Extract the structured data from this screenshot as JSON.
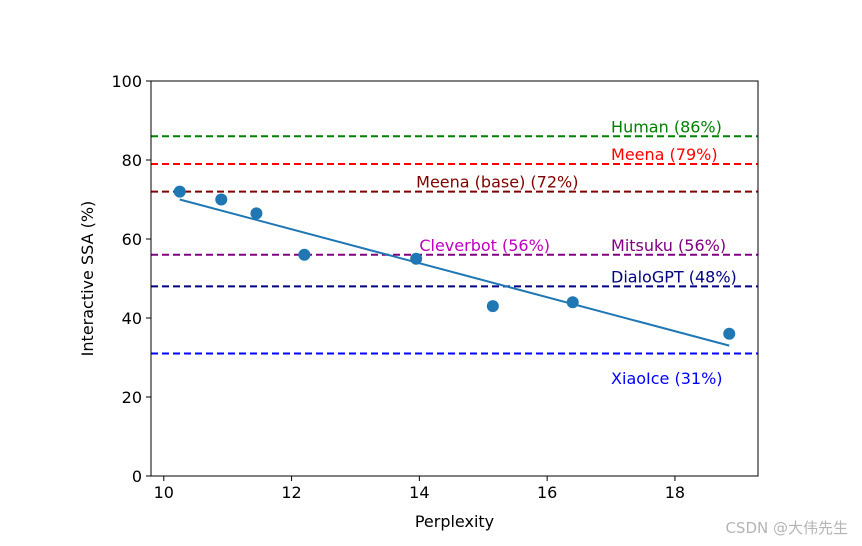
{
  "chart_data": {
    "type": "scatter",
    "title": "",
    "xlabel": "Perplexity",
    "ylabel": "Interactive SSA (%)",
    "xlim": [
      9.8,
      19.3
    ],
    "ylim": [
      0,
      100
    ],
    "x_ticks": [
      10,
      12,
      14,
      16,
      18
    ],
    "y_ticks": [
      0,
      20,
      40,
      60,
      80,
      100
    ],
    "grid": false,
    "points": {
      "color": "#1f77b4",
      "x": [
        10.25,
        10.9,
        11.45,
        12.2,
        13.95,
        15.15,
        16.4,
        18.85
      ],
      "y": [
        72,
        70,
        66.5,
        56,
        55,
        43,
        44,
        36
      ]
    },
    "trend_line": {
      "color": "#1f77b4",
      "x": [
        10.25,
        18.85
      ],
      "y": [
        70,
        33
      ]
    },
    "reference_lines": [
      {
        "label": "Human (86%)",
        "y": 86,
        "color": "#008000",
        "label_x": 17,
        "label_y": 88.5
      },
      {
        "label": "Meena (79%)",
        "y": 79,
        "color": "#ff0000",
        "label_x": 17,
        "label_y": 81.5
      },
      {
        "label": "Meena (base) (72%)",
        "y": 72,
        "color": "#800000",
        "label_x": 13.95,
        "label_y": 74.5
      },
      {
        "label": "Mitsuku (56%)",
        "y": 56,
        "color": "#800080",
        "label_x": 17,
        "label_y": 58.5
      },
      {
        "label": "DialoGPT (48%)",
        "y": 48,
        "color": "#000080",
        "label_x": 17,
        "label_y": 50.5
      },
      {
        "label": "XiaoIce (31%)",
        "y": 31,
        "color": "#0000ff",
        "label_x": 17,
        "label_y": 24.8
      }
    ],
    "extra_labels": [
      {
        "label": "Cleverbot (56%)",
        "color": "#bf00bf",
        "x": 14,
        "y": 58.5
      }
    ]
  },
  "watermark": "CSDN @大伟先生"
}
